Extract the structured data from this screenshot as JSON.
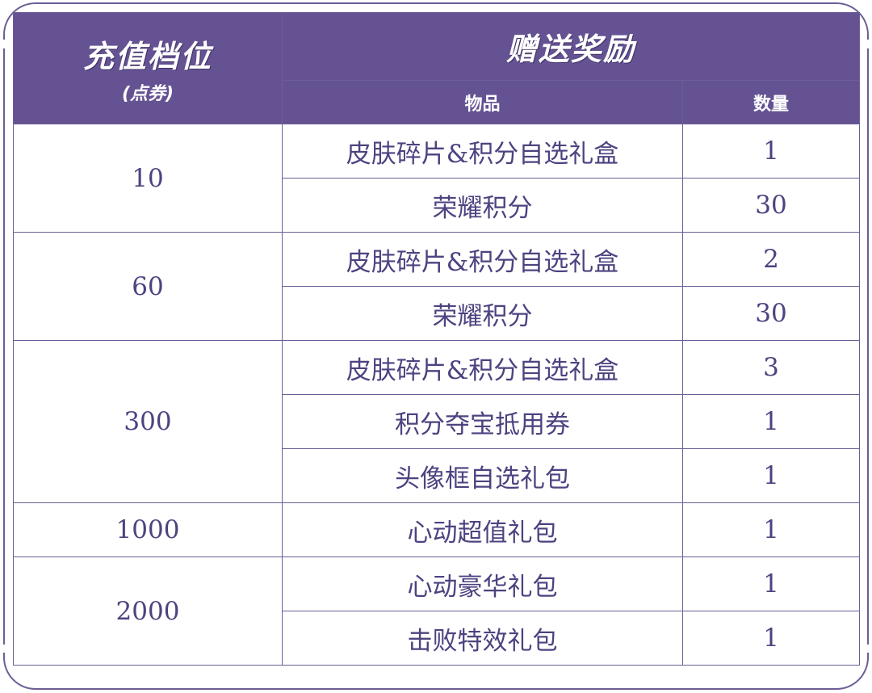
{
  "header": {
    "tier_title": "充值档位",
    "tier_unit": "(点券)",
    "reward_title": "赠送奖励",
    "item_col": "物品",
    "qty_col": "数量"
  },
  "rows": [
    {
      "tier": "10",
      "items": [
        {
          "name": "皮肤碎片&积分自选礼盒",
          "qty": "1"
        },
        {
          "name": "荣耀积分",
          "qty": "30"
        }
      ]
    },
    {
      "tier": "60",
      "items": [
        {
          "name": "皮肤碎片&积分自选礼盒",
          "qty": "2"
        },
        {
          "name": "荣耀积分",
          "qty": "30"
        }
      ]
    },
    {
      "tier": "300",
      "items": [
        {
          "name": "皮肤碎片&积分自选礼盒",
          "qty": "3"
        },
        {
          "name": "积分夺宝抵用券",
          "qty": "1"
        },
        {
          "name": "头像框自选礼包",
          "qty": "1"
        }
      ]
    },
    {
      "tier": "1000",
      "items": [
        {
          "name": "心动超值礼包",
          "qty": "1"
        }
      ]
    },
    {
      "tier": "2000",
      "items": [
        {
          "name": "心动豪华礼包",
          "qty": "1"
        },
        {
          "name": "击败特效礼包",
          "qty": "1"
        }
      ]
    }
  ],
  "colors": {
    "header_bg": "#655293",
    "border": "#6b5e95",
    "text": "#4e4280"
  }
}
